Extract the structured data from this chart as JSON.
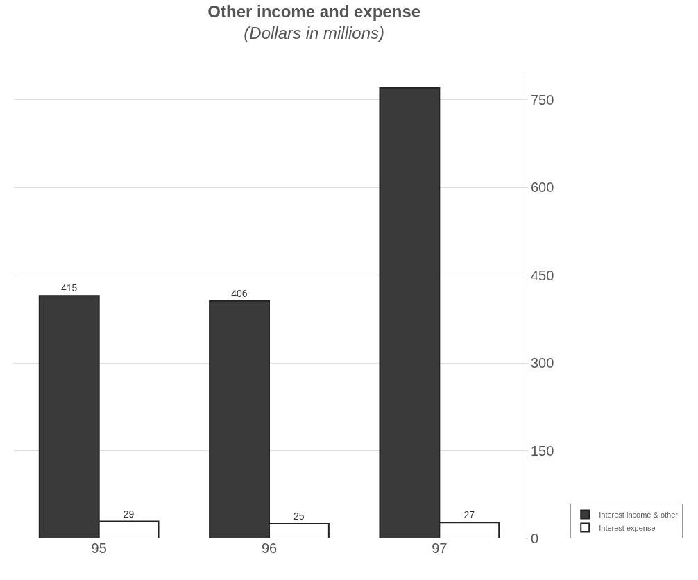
{
  "chart_data": {
    "type": "bar",
    "title": "Other income and expense",
    "subtitle": "(Dollars in millions)",
    "categories": [
      "95",
      "96",
      "97"
    ],
    "series": [
      {
        "name": "Interest income & other",
        "color": "#3a3a3a",
        "values": [
          415,
          406,
          770
        ],
        "value_labels": [
          "415",
          "406",
          null
        ]
      },
      {
        "name": "Interest expense",
        "color": "#ffffff",
        "values": [
          29,
          25,
          27
        ],
        "value_labels": [
          "29",
          "25",
          "27"
        ]
      }
    ],
    "ylim": [
      0,
      790
    ],
    "yticks": [
      0,
      150,
      300,
      450,
      600,
      750
    ],
    "grid": "y",
    "legend": "bottom right"
  }
}
